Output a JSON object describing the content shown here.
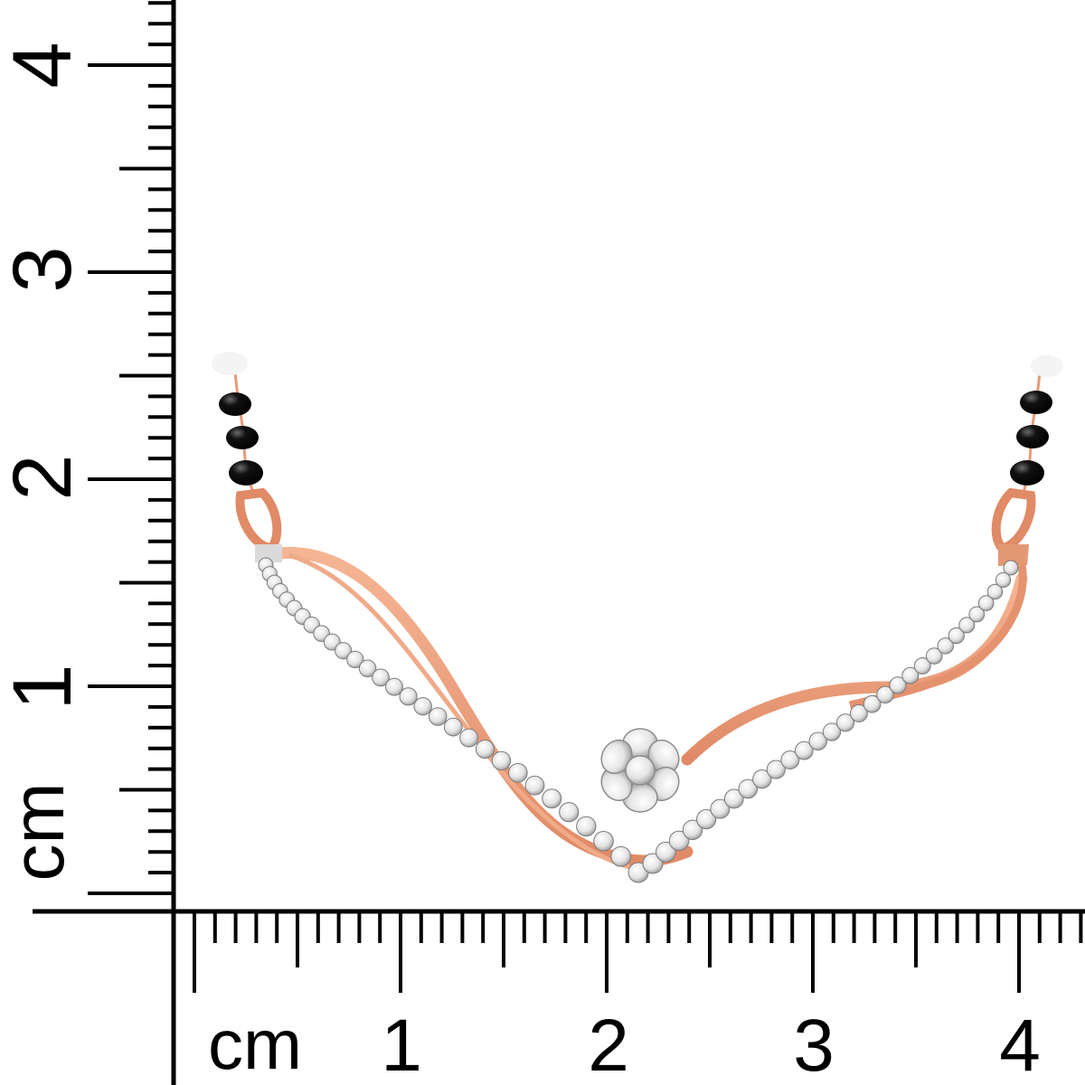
{
  "scale": {
    "unit_label": "cm",
    "horizontal_labels": [
      "1",
      "2",
      "3",
      "4"
    ],
    "vertical_labels": [
      "1",
      "2",
      "3",
      "4"
    ]
  },
  "colors": {
    "background": "#ffffff",
    "ruler_ink": "#000000",
    "rose_gold": "#ec9a78",
    "rose_gold_dark": "#c96f4c",
    "diamond": "#eeeeee",
    "bead": "#0d0d0d"
  },
  "product": {
    "type": "mangalsutra pendant",
    "metal": "rose gold with white gold diamond setting",
    "motif": "flower cluster",
    "beads": "black"
  }
}
